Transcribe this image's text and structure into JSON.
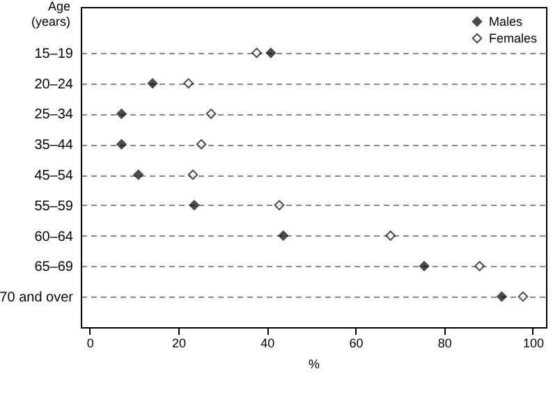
{
  "chart_data": {
    "type": "scatter",
    "orientation": "horizontal",
    "ylabel": "Age (years)",
    "xlabel": "%",
    "categories": [
      "15–19",
      "20–24",
      "25–34",
      "35–44",
      "45–54",
      "55–59",
      "60–64",
      "65–69",
      "70 and over"
    ],
    "series": [
      {
        "name": "Males",
        "color": "#000000",
        "values": [
          40.9,
          14.2,
          7.2,
          7.2,
          11.0,
          23.6,
          43.7,
          75.5,
          93.0
        ]
      },
      {
        "name": "Females",
        "color": "#ffffff",
        "values": [
          37.7,
          22.3,
          27.4,
          25.2,
          23.3,
          42.8,
          67.9,
          88.0,
          97.8
        ]
      }
    ],
    "xlim": [
      -2,
      103
    ],
    "xticks": [
      0,
      20,
      40,
      60,
      80,
      100
    ],
    "grid": "y",
    "line_style": "dashed",
    "marker": "diamond",
    "legend": "top right"
  }
}
